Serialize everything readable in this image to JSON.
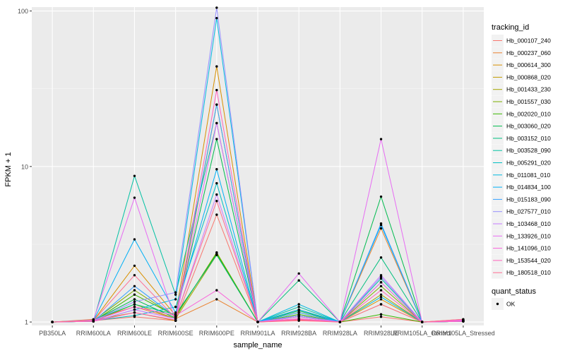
{
  "chart_data": {
    "type": "line",
    "xlabel": "sample_name",
    "ylabel": "FPKM + 1",
    "y_scale": "log10",
    "ylim": [
      0.95,
      106
    ],
    "grid": true,
    "legend_position": "right",
    "categories": [
      "PB350LA",
      "RRIM600LA",
      "RRIM600LE",
      "RRIM600SE",
      "RRIM600PE",
      "RRIM901LA",
      "RRIM928BA",
      "RRIM928LA",
      "RRIM928LE",
      "RRIM105LA_Control",
      "RRIM105LA_Stressed"
    ],
    "y_ticks": [
      {
        "value": 1,
        "label": "1"
      },
      {
        "value": 10,
        "label": "10"
      },
      {
        "value": 100,
        "label": "100"
      }
    ],
    "legend_title": "tracking_id",
    "series": [
      {
        "name": "Hb_000107_240",
        "color": "#F8766D",
        "values": [
          1,
          1.02,
          1.08,
          1.02,
          4.9,
          1,
          1.03,
          1,
          1.08,
          1,
          1.02
        ]
      },
      {
        "name": "Hb_000237_060",
        "color": "#EA8331",
        "values": [
          1,
          1.04,
          1.25,
          1.05,
          1.4,
          1,
          1.05,
          1,
          4.0,
          1,
          1.04
        ]
      },
      {
        "name": "Hb_000614_300",
        "color": "#D89000",
        "values": [
          1,
          1.02,
          2.3,
          1.1,
          44,
          1,
          1.1,
          1,
          1.4,
          1,
          1.01
        ]
      },
      {
        "name": "Hb_000868_020",
        "color": "#C09B00",
        "values": [
          1,
          1.03,
          1.15,
          1.02,
          25,
          1,
          1.08,
          1,
          1.3,
          1,
          1.02
        ]
      },
      {
        "name": "Hb_001433_230",
        "color": "#A3A500",
        "values": [
          1,
          1.01,
          1.3,
          1.05,
          2.7,
          1,
          1.15,
          1,
          1.5,
          1,
          1.01
        ]
      },
      {
        "name": "Hb_001557_030",
        "color": "#7CAE00",
        "values": [
          1,
          1.02,
          1.6,
          1.08,
          2.8,
          1,
          1.2,
          1,
          1.7,
          1,
          1.02
        ]
      },
      {
        "name": "Hb_002020_010",
        "color": "#39B600",
        "values": [
          1,
          1.01,
          1.5,
          1.1,
          2.75,
          1,
          1.12,
          1,
          1.12,
          1,
          1.01
        ]
      },
      {
        "name": "Hb_003060_020",
        "color": "#00BB4E",
        "values": [
          1,
          1.02,
          1.4,
          1.06,
          15,
          1,
          1.18,
          1,
          6.4,
          1,
          1.02
        ]
      },
      {
        "name": "Hb_003152_010",
        "color": "#00BF7D",
        "values": [
          1,
          1.03,
          1.3,
          1.12,
          2.7,
          1,
          1.85,
          1,
          2.6,
          1,
          1.03
        ]
      },
      {
        "name": "Hb_003528_090",
        "color": "#00C1A3",
        "values": [
          1,
          1.01,
          8.7,
          1.5,
          19,
          1,
          1.25,
          1,
          1.9,
          1,
          1.01
        ]
      },
      {
        "name": "Hb_005291_020",
        "color": "#00BFC4",
        "values": [
          1,
          1.02,
          1.1,
          1.25,
          7.8,
          1,
          1.1,
          1,
          1.8,
          1,
          1.02
        ]
      },
      {
        "name": "Hb_011081_010",
        "color": "#00BAE0",
        "values": [
          1,
          1.01,
          1.2,
          1.4,
          90,
          1,
          1.3,
          1,
          1.45,
          1,
          1.01
        ]
      },
      {
        "name": "Hb_014834_100",
        "color": "#00B0F6",
        "values": [
          1,
          1.02,
          3.4,
          1.15,
          9.6,
          1,
          1.2,
          1,
          4.2,
          1,
          1.02
        ]
      },
      {
        "name": "Hb_015183_090",
        "color": "#35A2FF",
        "values": [
          1,
          1.01,
          1.7,
          1.08,
          25,
          1,
          1.15,
          1,
          4.3,
          1,
          1.01
        ]
      },
      {
        "name": "Hb_027577_010",
        "color": "#9590FF",
        "values": [
          1,
          1.02,
          1.35,
          1.55,
          105,
          1,
          1.1,
          1,
          1.95,
          1,
          1.02
        ]
      },
      {
        "name": "Hb_103468_010",
        "color": "#C77CFF",
        "values": [
          1,
          1.01,
          1.2,
          1.05,
          6.6,
          1,
          1.08,
          1,
          2.0,
          1,
          1.01
        ]
      },
      {
        "name": "Hb_133926_010",
        "color": "#E76BF3",
        "values": [
          1,
          1.03,
          6.3,
          1.02,
          19,
          1,
          2.05,
          1,
          15,
          1,
          1.03
        ]
      },
      {
        "name": "Hb_141096_010",
        "color": "#FA62DB",
        "values": [
          1,
          1.02,
          1.25,
          1.1,
          1.6,
          1,
          1.05,
          1,
          1.8,
          1,
          1.02
        ]
      },
      {
        "name": "Hb_153544_020",
        "color": "#FF62BC",
        "values": [
          1,
          1.01,
          1.15,
          1.03,
          31,
          1,
          1.04,
          1,
          1.6,
          1,
          1.01
        ]
      },
      {
        "name": "Hb_180518_010",
        "color": "#FF6C91",
        "values": [
          1,
          1.02,
          2.0,
          1.06,
          6.0,
          1,
          1.02,
          1,
          1.3,
          1,
          1.04
        ]
      }
    ],
    "legend2_title": "quant_status",
    "legend2_items": [
      {
        "label": "OK",
        "color": "#000000"
      }
    ]
  }
}
